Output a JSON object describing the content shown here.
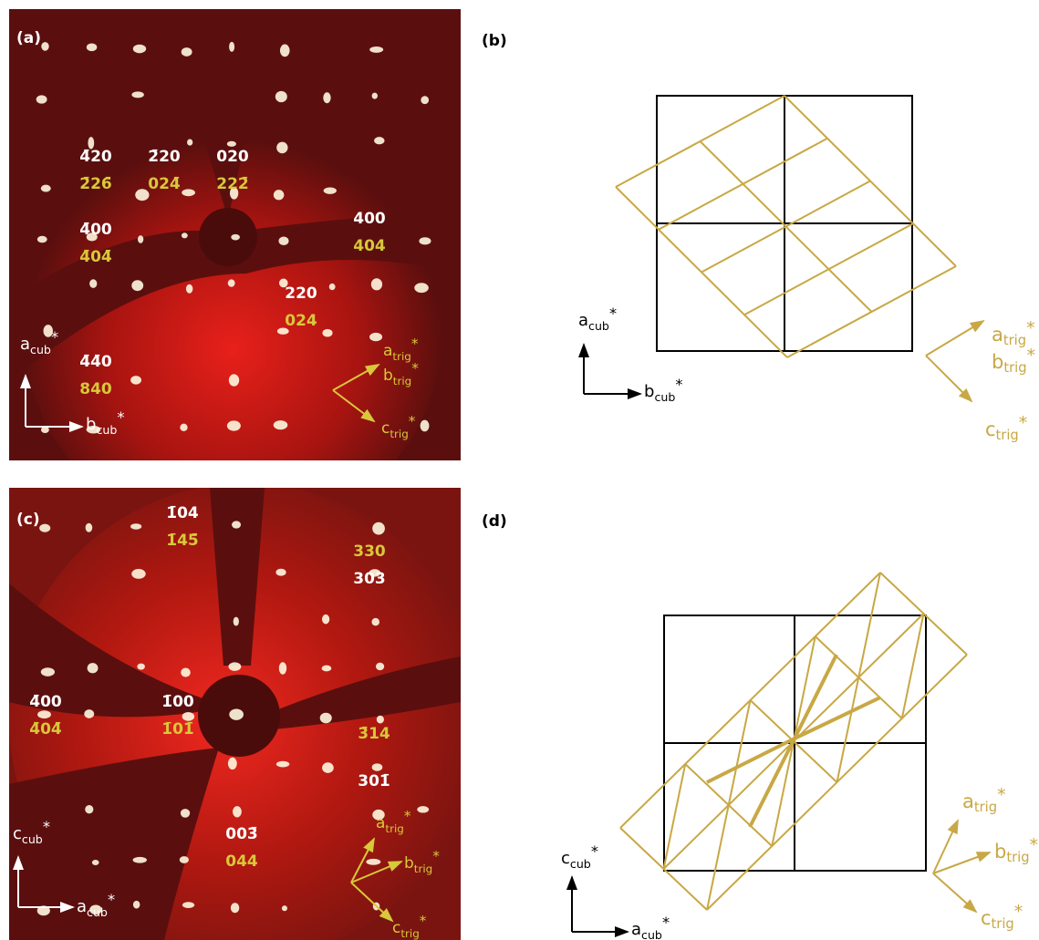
{
  "panels": [
    {
      "label": "(a)",
      "spots": [
        {
          "white": "4̄20",
          "yellow": "2̄26̄"
        },
        {
          "white": "2̄20",
          "yellow": "024̄"
        },
        {
          "white": "020",
          "yellow": "222̄"
        },
        {
          "white": "4̄00",
          "yellow": "4̄04̄"
        },
        {
          "white": "400",
          "yellow": "404"
        },
        {
          "white": "220",
          "yellow": "024"
        },
        {
          "white": "4̄4̄0",
          "yellow": "840"
        }
      ],
      "axes": [
        {
          "base": "a",
          "sub": "cub",
          "sup": "*"
        },
        {
          "base": "b",
          "sub": "cub",
          "sup": "*"
        }
      ],
      "trig_axes": [
        {
          "base": "a",
          "sub": "trig",
          "sup": "*"
        },
        {
          "base": "b",
          "sub": "trig",
          "sup": "*"
        },
        {
          "base": "c",
          "sub": "trig",
          "sup": "*"
        }
      ]
    },
    {
      "label": "(b)",
      "axes": [
        {
          "base": "a",
          "sub": "cub",
          "sup": "*"
        },
        {
          "base": "b",
          "sub": "cub",
          "sup": "*"
        }
      ],
      "trig_axes": [
        {
          "base": "a",
          "sub": "trig",
          "sup": "*"
        },
        {
          "base": "b",
          "sub": "trig",
          "sup": "*"
        },
        {
          "base": "c",
          "sub": "trig",
          "sup": "*"
        }
      ]
    },
    {
      "label": "(c)",
      "spots": [
        {
          "white": "1̄04",
          "yellow": "1̄45̄"
        },
        {
          "yellow": "330",
          "white": "303"
        },
        {
          "white": "4̄00",
          "yellow": "4̄04̄"
        },
        {
          "white": "1̄00",
          "yellow": "1̄01̄"
        },
        {
          "yellow": "3̄14",
          "white": "301̄"
        },
        {
          "white": "003̄",
          "yellow": "044"
        }
      ],
      "axes": [
        {
          "base": "c",
          "sub": "cub",
          "sup": "*"
        },
        {
          "base": "a",
          "sub": "cub",
          "sup": "*"
        }
      ],
      "trig_axes": [
        {
          "base": "a",
          "sub": "trig",
          "sup": "*"
        },
        {
          "base": "b",
          "sub": "trig",
          "sup": "*"
        },
        {
          "base": "c",
          "sub": "trig",
          "sup": "*"
        }
      ]
    },
    {
      "label": "(d)",
      "axes": [
        {
          "base": "c",
          "sub": "cub",
          "sup": "*"
        },
        {
          "base": "a",
          "sub": "cub",
          "sup": "*"
        }
      ],
      "trig_axes": [
        {
          "base": "a",
          "sub": "trig",
          "sup": "*"
        },
        {
          "base": "b",
          "sub": "trig",
          "sup": "*"
        },
        {
          "base": "c",
          "sub": "trig",
          "sup": "*"
        }
      ]
    }
  ]
}
